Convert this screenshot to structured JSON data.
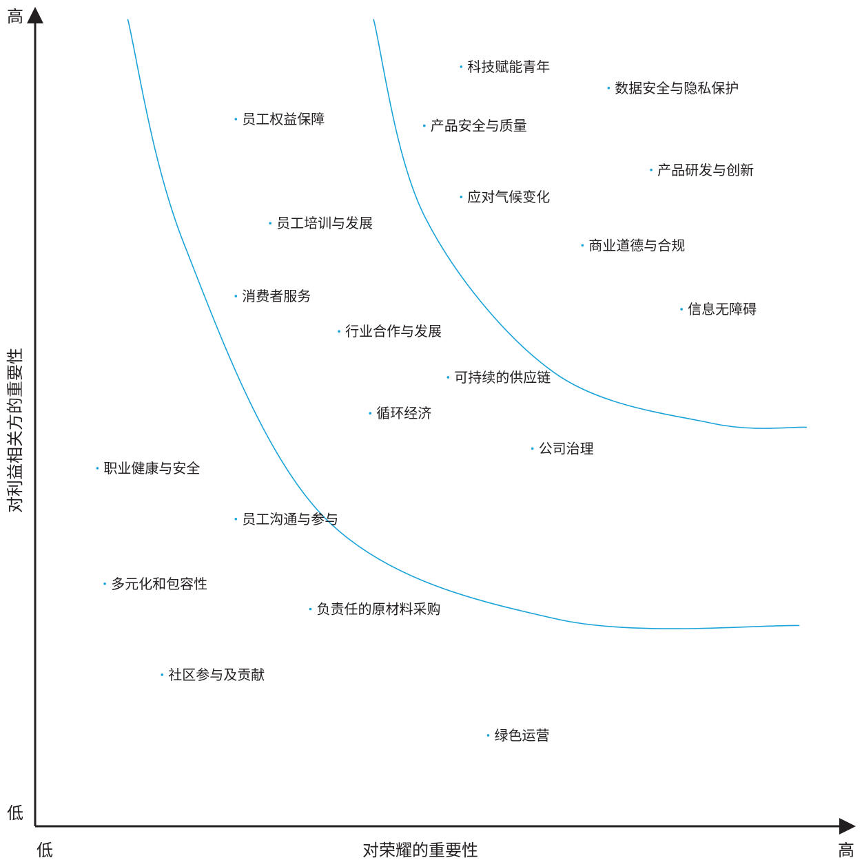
{
  "chart_data": {
    "type": "scatter",
    "title": "",
    "xlabel": "对荣耀的重要性",
    "ylabel": "对利益相关方的重要性",
    "x_low_label": "低",
    "x_high_label": "高",
    "y_low_label": "低",
    "y_high_label": "高",
    "xlim": [
      0,
      100
    ],
    "ylim": [
      0,
      100
    ],
    "grid": false,
    "legend": "none",
    "colors": {
      "axis": "#231f20",
      "dot": "#1aa3d9",
      "band": "#1aa3d9",
      "text": "#231f20"
    },
    "points": [
      {
        "label": "科技赋能青年",
        "x": 52.0,
        "y": 92.7
      },
      {
        "label": "数据安全与隐私保护",
        "x": 70.0,
        "y": 90.1
      },
      {
        "label": "员工权益保障",
        "x": 24.5,
        "y": 86.3
      },
      {
        "label": "产品安全与质量",
        "x": 47.5,
        "y": 85.5
      },
      {
        "label": "产品研发与创新",
        "x": 75.2,
        "y": 80.1
      },
      {
        "label": "应对气候变化",
        "x": 52.0,
        "y": 76.8
      },
      {
        "label": "员工培训与发展",
        "x": 28.7,
        "y": 73.6
      },
      {
        "label": "商业道德与合规",
        "x": 66.8,
        "y": 70.9
      },
      {
        "label": "消费者服务",
        "x": 24.5,
        "y": 64.7
      },
      {
        "label": "信息无障碍",
        "x": 78.9,
        "y": 63.1
      },
      {
        "label": "行业合作与发展",
        "x": 37.1,
        "y": 60.4
      },
      {
        "label": "可持续的供应链",
        "x": 50.4,
        "y": 54.8
      },
      {
        "label": "循环经济",
        "x": 40.9,
        "y": 50.4
      },
      {
        "label": "公司治理",
        "x": 60.7,
        "y": 46.1
      },
      {
        "label": "职业健康与安全",
        "x": 7.6,
        "y": 43.7
      },
      {
        "label": "员工沟通与参与",
        "x": 24.5,
        "y": 37.5
      },
      {
        "label": "多元化和包容性",
        "x": 8.5,
        "y": 29.6
      },
      {
        "label": "负责任的原材料采购",
        "x": 33.6,
        "y": 26.5
      },
      {
        "label": "社区参与及贡献",
        "x": 15.5,
        "y": 18.5
      },
      {
        "label": "绿色运营",
        "x": 55.3,
        "y": 11.1
      }
    ],
    "bands": [
      {
        "points": [
          [
            11.3,
            98.5
          ],
          [
            18.2,
            71.0
          ],
          [
            35.4,
            37.6
          ],
          [
            63.6,
            25.3
          ],
          [
            93.3,
            24.5
          ]
        ]
      },
      {
        "points": [
          [
            41.3,
            98.5
          ],
          [
            47.6,
            74.3
          ],
          [
            63.3,
            55.4
          ],
          [
            82.5,
            49.2
          ],
          [
            94.2,
            48.7
          ]
        ]
      }
    ]
  }
}
